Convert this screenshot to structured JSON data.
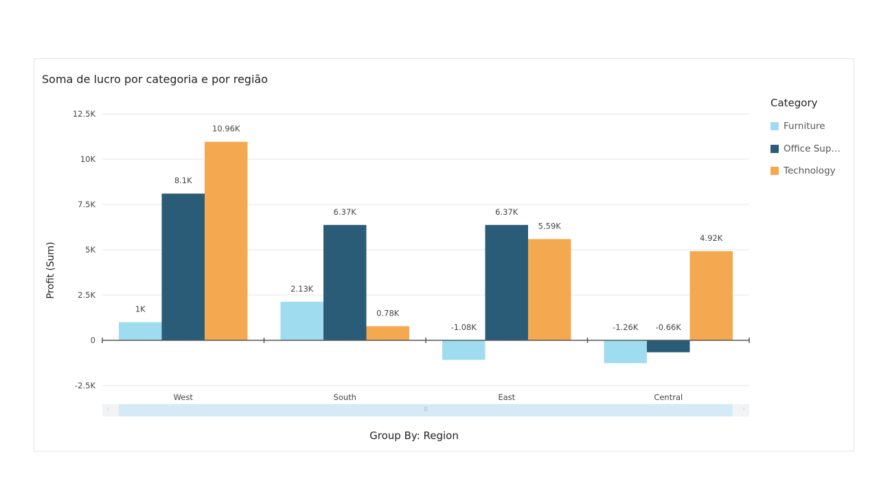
{
  "visual": {
    "title": "Soma de lucro por categoria e por região",
    "x_axis_title": "Group By: Region",
    "y_axis_title": "Profit (Sum)"
  },
  "legend": {
    "title": "Category",
    "items": [
      {
        "label": "Furniture",
        "color": "#a0dcef"
      },
      {
        "label": "Office Sup…",
        "color": "#2b5c77"
      },
      {
        "label": "Technology",
        "color": "#f4a950"
      }
    ]
  },
  "scrollbar": {
    "grip_icon": "grip-dots-icon"
  },
  "chart_data": {
    "type": "bar",
    "title": "Soma de lucro por categoria e por região",
    "xlabel": "Group By: Region",
    "ylabel": "Profit (Sum)",
    "categories": [
      "West",
      "South",
      "East",
      "Central"
    ],
    "series": [
      {
        "name": "Furniture",
        "color": "#a0dcef",
        "values": [
          1000,
          2130,
          -1080,
          -1260
        ],
        "labels": [
          "1K",
          "2.13K",
          "-1.08K",
          "-1.26K"
        ]
      },
      {
        "name": "Office Sup…",
        "color": "#2b5c77",
        "values": [
          8100,
          6370,
          6370,
          -660
        ],
        "labels": [
          "8.1K",
          "6.37K",
          "6.37K",
          "-0.66K"
        ]
      },
      {
        "name": "Technology",
        "color": "#f4a950",
        "values": [
          10960,
          780,
          5590,
          4920
        ],
        "labels": [
          "10.96K",
          "0.78K",
          "5.59K",
          "4.92K"
        ]
      }
    ],
    "yticks": [
      -2500,
      0,
      2500,
      5000,
      7500,
      10000,
      12500
    ],
    "ytick_labels": [
      "-2.5K",
      "0",
      "2.5K",
      "5K",
      "7.5K",
      "10K",
      "12.5K"
    ],
    "ylim": [
      -2500,
      12500
    ],
    "grid": true,
    "legend_position": "right"
  }
}
